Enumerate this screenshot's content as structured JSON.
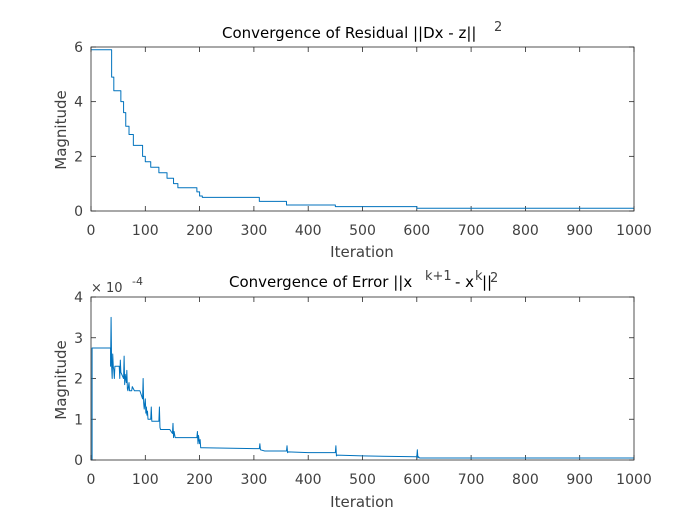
{
  "chart_data": [
    {
      "type": "line",
      "title": "Convergence of Residual ||Dx - z||",
      "title_superscript": "2",
      "xlabel": "Iteration",
      "ylabel": "Magnitude",
      "xlim": [
        0,
        1000
      ],
      "ylim": [
        0,
        6
      ],
      "x_ticks": [
        0,
        100,
        200,
        300,
        400,
        500,
        600,
        700,
        800,
        900,
        1000
      ],
      "y_ticks": [
        0,
        2,
        4,
        6
      ],
      "grid": false,
      "line_color": "#0072BD",
      "series": [
        {
          "x": [
            1,
            38,
            38,
            42,
            42,
            55,
            55,
            60,
            60,
            64,
            64,
            70,
            70,
            78,
            78,
            95,
            95,
            100,
            100,
            110,
            110,
            125,
            125,
            140,
            140,
            152,
            152,
            160,
            160,
            195,
            195,
            200,
            200,
            205,
            205,
            310,
            310,
            360,
            360,
            450,
            450,
            600,
            600,
            1000
          ],
          "y": [
            5.9,
            5.9,
            4.9,
            4.9,
            4.4,
            4.4,
            4.0,
            4.0,
            3.6,
            3.6,
            3.1,
            3.1,
            2.8,
            2.8,
            2.4,
            2.4,
            2.0,
            2.0,
            1.8,
            1.8,
            1.6,
            1.6,
            1.4,
            1.4,
            1.2,
            1.2,
            1.0,
            1.0,
            0.85,
            0.85,
            0.7,
            0.7,
            0.55,
            0.55,
            0.5,
            0.5,
            0.35,
            0.35,
            0.22,
            0.22,
            0.16,
            0.16,
            0.1,
            0.1
          ]
        }
      ]
    },
    {
      "type": "line",
      "title": "Convergence of Error ||x",
      "title_superscript_1": "k+1",
      "title_middle": "- x",
      "title_superscript_2": "k",
      "title_end": "||",
      "title_superscript_3": "2",
      "xlabel": "Iteration",
      "ylabel": "Magnitude",
      "axis_multiplier": "× 10",
      "axis_multiplier_exponent": "-4",
      "xlim": [
        0,
        1000
      ],
      "ylim": [
        0,
        4
      ],
      "x_ticks": [
        0,
        100,
        200,
        300,
        400,
        500,
        600,
        700,
        800,
        900,
        1000
      ],
      "y_ticks": [
        0,
        1,
        2,
        3,
        4
      ],
      "grid": false,
      "line_color": "#0072BD",
      "series": [
        {
          "x": [
            1,
            2,
            2,
            36,
            36,
            37,
            38,
            39,
            40,
            41,
            42,
            43,
            44,
            52,
            53,
            54,
            55,
            60,
            61,
            62,
            63,
            65,
            66,
            67,
            68,
            70,
            71,
            75,
            76,
            80,
            90,
            95,
            96,
            97,
            98,
            100,
            101,
            102,
            103,
            104,
            105,
            110,
            111,
            112,
            125,
            126,
            127,
            128,
            135,
            145,
            150,
            151,
            152,
            153,
            155,
            160,
            195,
            196,
            197,
            198,
            200,
            201,
            202,
            205,
            206,
            300,
            310,
            311,
            312,
            320,
            360,
            361,
            362,
            363,
            400,
            450,
            451,
            452,
            453,
            500,
            600,
            601,
            602,
            603,
            605,
            700,
            1000
          ],
          "y": [
            0,
            0,
            2.75,
            2.75,
            2.3,
            3.5,
            2.3,
            2.0,
            2.6,
            2.3,
            2.2,
            2.0,
            2.3,
            2.3,
            2.0,
            2.45,
            2.15,
            2.0,
            2.55,
            1.85,
            2.1,
            1.9,
            2.2,
            1.75,
            1.7,
            1.9,
            1.7,
            1.7,
            1.8,
            1.7,
            1.7,
            1.5,
            2.0,
            1.4,
            1.25,
            1.5,
            1.15,
            1.3,
            1.1,
            1.2,
            1.0,
            1.0,
            1.3,
            0.95,
            0.95,
            1.3,
            0.8,
            0.75,
            0.75,
            0.75,
            0.65,
            0.9,
            0.55,
            0.7,
            0.55,
            0.55,
            0.55,
            0.7,
            0.4,
            0.6,
            0.4,
            0.5,
            0.3,
            0.3,
            0.3,
            0.28,
            0.28,
            0.4,
            0.25,
            0.22,
            0.22,
            0.35,
            0.18,
            0.2,
            0.18,
            0.18,
            0.35,
            0.1,
            0.12,
            0.1,
            0.08,
            0.25,
            0.05,
            0.08,
            0.05,
            0.05,
            0.05
          ]
        }
      ]
    }
  ]
}
